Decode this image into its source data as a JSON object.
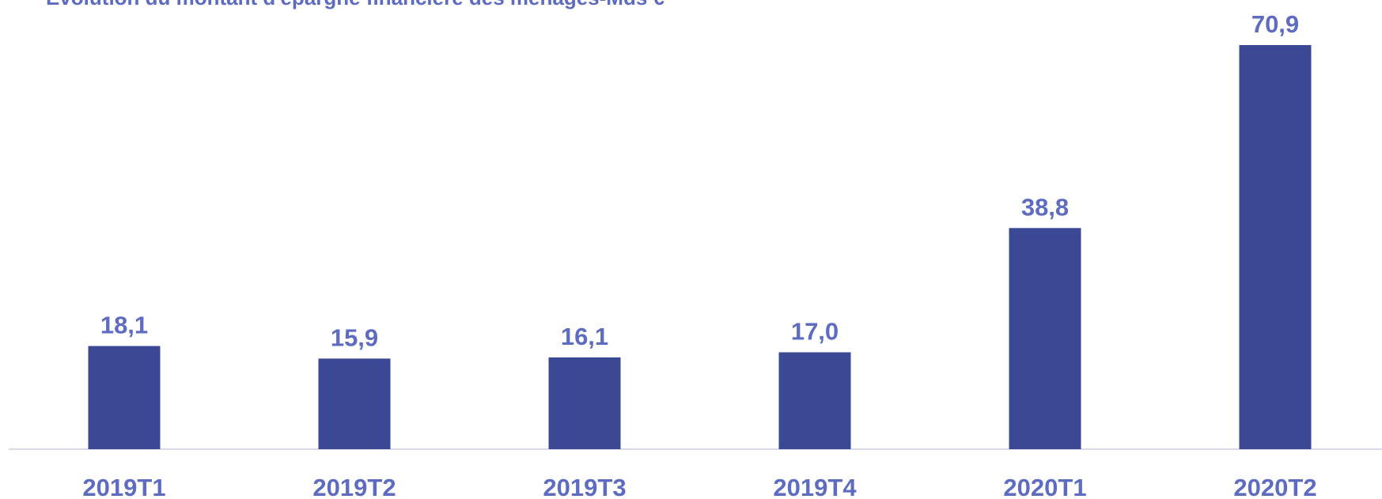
{
  "chart_data": {
    "type": "bar",
    "title": "Evolution du montant d'épargne financière des ménages-Mds €",
    "categories": [
      "2019T1",
      "2019T2",
      "2019T3",
      "2019T4",
      "2020T1",
      "2020T2"
    ],
    "values": [
      18.1,
      15.9,
      16.1,
      17.0,
      38.8,
      70.9
    ],
    "value_labels": [
      "18,1",
      "15,9",
      "16,1",
      "17,0",
      "38,8",
      "70,9"
    ],
    "color": "#3b4894"
  }
}
